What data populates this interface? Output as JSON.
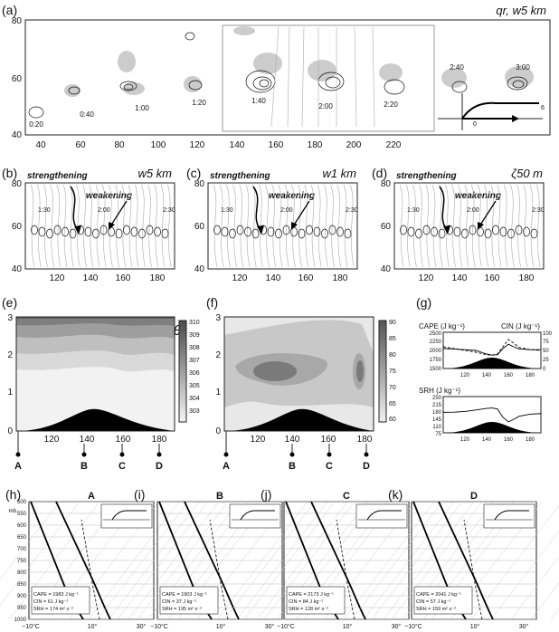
{
  "figure": {
    "panels": {
      "a": {
        "label": "(a)",
        "title": "qr, w5 km",
        "times": [
          "0:20",
          "0:40",
          "1:00",
          "1:20",
          "1:40",
          "2:00",
          "2:20",
          "2:40",
          "3:00"
        ],
        "inset_labels": [
          "0",
          "6"
        ]
      },
      "b": {
        "label": "(b)",
        "title": "w5 km",
        "annot_left": "strengthening",
        "annot_right": "weakening",
        "times": [
          "1:30",
          "2:00",
          "2:30"
        ]
      },
      "c": {
        "label": "(c)",
        "title": "w1 km",
        "annot_left": "strengthening",
        "annot_right": "weakening",
        "times": [
          "1:30",
          "2:00",
          "2:30"
        ]
      },
      "d": {
        "label": "(d)",
        "title": "ζ50 m",
        "annot_left": "strengthening",
        "annot_right": "weakening",
        "times": [
          "1:30",
          "2:00",
          "2:30"
        ]
      },
      "e": {
        "label": "(e)",
        "title": "θ"
      },
      "f": {
        "label": "(f)",
        "title": "RH"
      },
      "g": {
        "label": "(g)",
        "cape_label": "CAPE (J kg⁻¹)",
        "cin_label": "CIN (J kg⁻¹)",
        "srh_label": "SRH (J kg⁻¹)"
      },
      "h": {
        "label": "(h)",
        "site": "A",
        "cape": "CAPE = 1983 J kg⁻¹",
        "cin": "CIN = 61 J kg⁻¹",
        "srh": "SRH = 174 m² s⁻²"
      },
      "i": {
        "label": "(i)",
        "site": "B",
        "cape": "CAPE = 1903 J kg⁻¹",
        "cin": "CIN = 37 J kg⁻¹",
        "srh": "SRH = 195 m² s⁻²"
      },
      "j": {
        "label": "(j)",
        "site": "C",
        "cape": "CAPE = 2173 J kg⁻¹",
        "cin": "CIN = 84 J kg⁻¹",
        "srh": "SRH = 128 m² s⁻²"
      },
      "k": {
        "label": "(k)",
        "site": "D",
        "cape": "CAPE = 2041 J kg⁻¹",
        "cin": "CIN = 57 J kg⁻¹",
        "srh": "SRH = 159 m² s⁻²"
      }
    },
    "site_labels": [
      "A",
      "B",
      "C",
      "D"
    ],
    "skewt_pressure_unit": "mb",
    "skewt_pressures": [
      "500",
      "550",
      "600",
      "650",
      "700",
      "750",
      "800",
      "850",
      "900",
      "950",
      "1000"
    ],
    "skewt_temps": [
      "−10°C",
      "10°",
      "30°"
    ]
  },
  "chart_data": [
    {
      "type": "scatter",
      "panel": "a",
      "xlim": [
        30,
        230
      ],
      "ylim": [
        40,
        80
      ],
      "xticks": [
        "40",
        "60",
        "80",
        "100",
        "120",
        "140",
        "160",
        "180",
        "200",
        "220"
      ],
      "yticks": [
        "40",
        "60",
        "80"
      ]
    },
    {
      "type": "scatter",
      "panel": "b",
      "xlim": [
        100,
        190
      ],
      "ylim": [
        40,
        80
      ],
      "xticks": [
        "120",
        "140",
        "160",
        "180"
      ],
      "yticks": [
        "40",
        "60",
        "80"
      ]
    },
    {
      "type": "scatter",
      "panel": "c",
      "xlim": [
        100,
        190
      ],
      "ylim": [
        40,
        80
      ],
      "xticks": [
        "120",
        "140",
        "160",
        "180"
      ],
      "yticks": [
        "40",
        "60",
        "80"
      ]
    },
    {
      "type": "scatter",
      "panel": "d",
      "xlim": [
        100,
        190
      ],
      "ylim": [
        40,
        80
      ],
      "xticks": [
        "120",
        "140",
        "160",
        "180"
      ],
      "yticks": [
        "40",
        "60",
        "80"
      ]
    },
    {
      "type": "area",
      "panel": "e",
      "xlim": [
        100,
        190
      ],
      "ylim": [
        0,
        3
      ],
      "xticks": [
        "120",
        "140",
        "160",
        "180"
      ],
      "yticks": [
        "0",
        "1",
        "2",
        "3"
      ],
      "colorbar": [
        "303",
        "304",
        "305",
        "306",
        "307",
        "308",
        "309",
        "310"
      ]
    },
    {
      "type": "area",
      "panel": "f",
      "xlim": [
        100,
        190
      ],
      "ylim": [
        0,
        3
      ],
      "xticks": [
        "120",
        "140",
        "160",
        "180"
      ],
      "yticks": [
        "0",
        "1",
        "2",
        "3"
      ],
      "colorbar": [
        "60",
        "65",
        "70",
        "75",
        "80",
        "85",
        "90"
      ]
    },
    {
      "type": "line",
      "panel": "g-top",
      "xticks": [
        "120",
        "140",
        "160",
        "180"
      ],
      "yticks_left": [
        "1500",
        "1750",
        "2000",
        "2250",
        "2500"
      ],
      "yticks_right": [
        "0",
        "25",
        "50",
        "75",
        "100"
      ],
      "series": [
        {
          "name": "CAPE",
          "x": [
            100,
            110,
            120,
            130,
            140,
            145,
            150,
            155,
            160,
            165,
            170,
            180,
            190
          ],
          "values": [
            2050,
            2040,
            2020,
            2000,
            1900,
            1870,
            1880,
            2050,
            2170,
            2100,
            2040,
            2020,
            2020
          ]
        },
        {
          "name": "CIN",
          "x": [
            100,
            110,
            120,
            130,
            140,
            145,
            150,
            155,
            160,
            165,
            170,
            180,
            190
          ],
          "values": [
            60,
            55,
            50,
            45,
            38,
            37,
            40,
            60,
            80,
            70,
            58,
            52,
            50
          ]
        }
      ]
    },
    {
      "type": "line",
      "panel": "g-bottom",
      "xticks": [
        "120",
        "140",
        "160",
        "180"
      ],
      "yticks": [
        "75",
        "110",
        "145",
        "180",
        "215",
        "250"
      ],
      "series": [
        {
          "name": "SRH",
          "x": [
            100,
            110,
            120,
            130,
            140,
            145,
            150,
            155,
            160,
            165,
            170,
            180,
            190
          ],
          "values": [
            174,
            175,
            178,
            185,
            193,
            195,
            190,
            150,
            128,
            140,
            155,
            165,
            168
          ]
        }
      ]
    }
  ]
}
